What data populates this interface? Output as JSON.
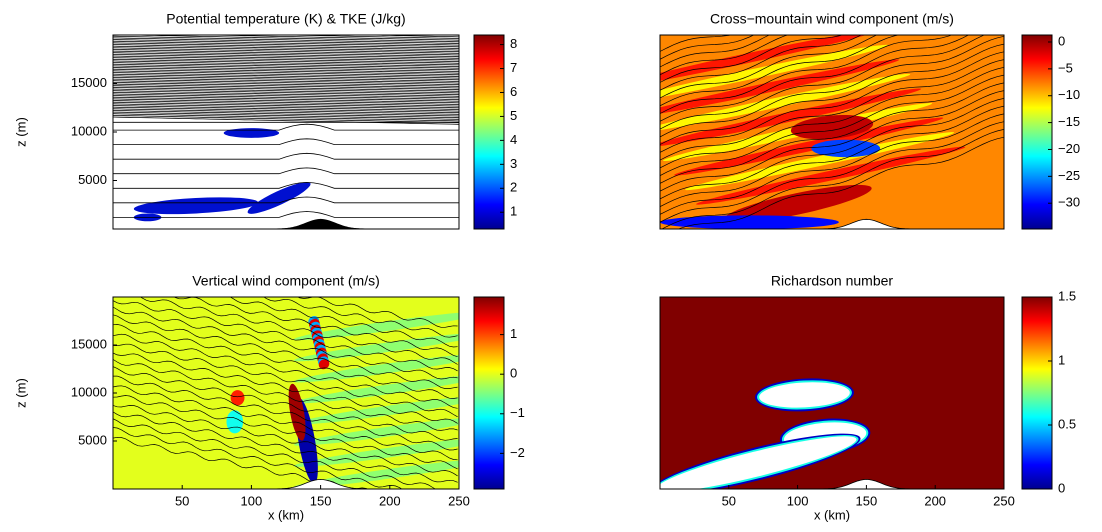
{
  "chart_data": [
    {
      "type": "contour",
      "title": "Potential temperature (K) & TKE (J/kg)",
      "ylabel": "z (m)",
      "xlim": [
        0,
        250
      ],
      "ylim": [
        0,
        20000
      ],
      "yticks": [
        5000,
        10000,
        15000
      ],
      "colormap": "jet",
      "clim": [
        0.3,
        8.4
      ],
      "cticks": [
        1,
        2,
        3,
        4,
        5,
        6,
        7,
        8
      ]
    },
    {
      "type": "contour",
      "title": "Cross−mountain wind component (m/s)",
      "xlim": [
        0,
        250
      ],
      "ylim": [
        0,
        20000
      ],
      "colormap": "jet",
      "clim": [
        -34.8,
        1.3
      ],
      "cticks": [
        {
          "value": -30,
          "label": "−30"
        },
        {
          "value": -25,
          "label": "−25"
        },
        {
          "value": -20,
          "label": "−20"
        },
        {
          "value": -15,
          "label": "−15"
        },
        {
          "value": -10,
          "label": "−10"
        },
        {
          "value": -5,
          "label": "−5"
        },
        0
      ]
    },
    {
      "type": "contour",
      "title": "Vertical wind component (m/s)",
      "xlabel": "x (km)",
      "ylabel": "z (m)",
      "xlim": [
        0,
        250
      ],
      "ylim": [
        0,
        20000
      ],
      "xticks": [
        50,
        100,
        150,
        200,
        250
      ],
      "yticks": [
        5000,
        10000,
        15000
      ],
      "colormap": "jet",
      "clim": [
        -2.9,
        1.95
      ],
      "cticks": [
        {
          "value": -2,
          "label": "−2"
        },
        {
          "value": -1,
          "label": "−1"
        },
        0,
        1
      ]
    },
    {
      "type": "contour",
      "title": "Richardson number",
      "xlabel": "x (km)",
      "xlim": [
        0,
        250
      ],
      "ylim": [
        0,
        20000
      ],
      "xticks": [
        50,
        100,
        150,
        200,
        250
      ],
      "colormap": "jet",
      "clim": [
        0,
        1.5
      ],
      "cticks": [
        0,
        0.5,
        1,
        1.5
      ]
    }
  ]
}
